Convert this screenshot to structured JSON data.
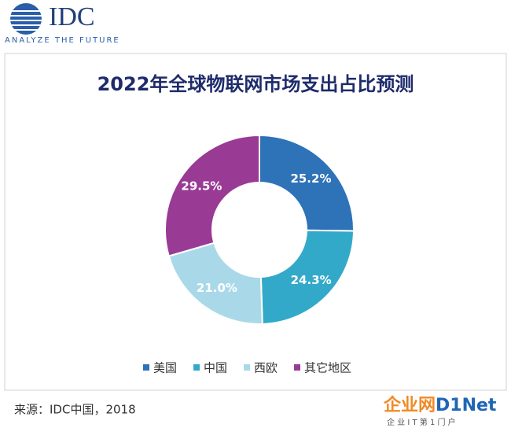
{
  "header": {
    "logo": "IDC",
    "tagline": "ANALYZE THE FUTURE"
  },
  "chart_data": {
    "type": "donut",
    "title": "2022年全球物联网市场支出占比预测",
    "categories": [
      "美国",
      "中国",
      "西欧",
      "其它地区"
    ],
    "values": [
      25.2,
      24.3,
      21.0,
      29.5
    ],
    "value_labels": [
      "25.2%",
      "24.3%",
      "21.0%",
      "29.5%"
    ],
    "colors": [
      "#2e72b8",
      "#33a9c9",
      "#a9d9e8",
      "#993a95"
    ],
    "legend": "bottom"
  },
  "footer": {
    "source": "来源：IDC中国，2018"
  },
  "watermark": {
    "brand": "企业网",
    "name": "D1Net",
    "slogan": "企 业 I T 第 1 门 户"
  }
}
